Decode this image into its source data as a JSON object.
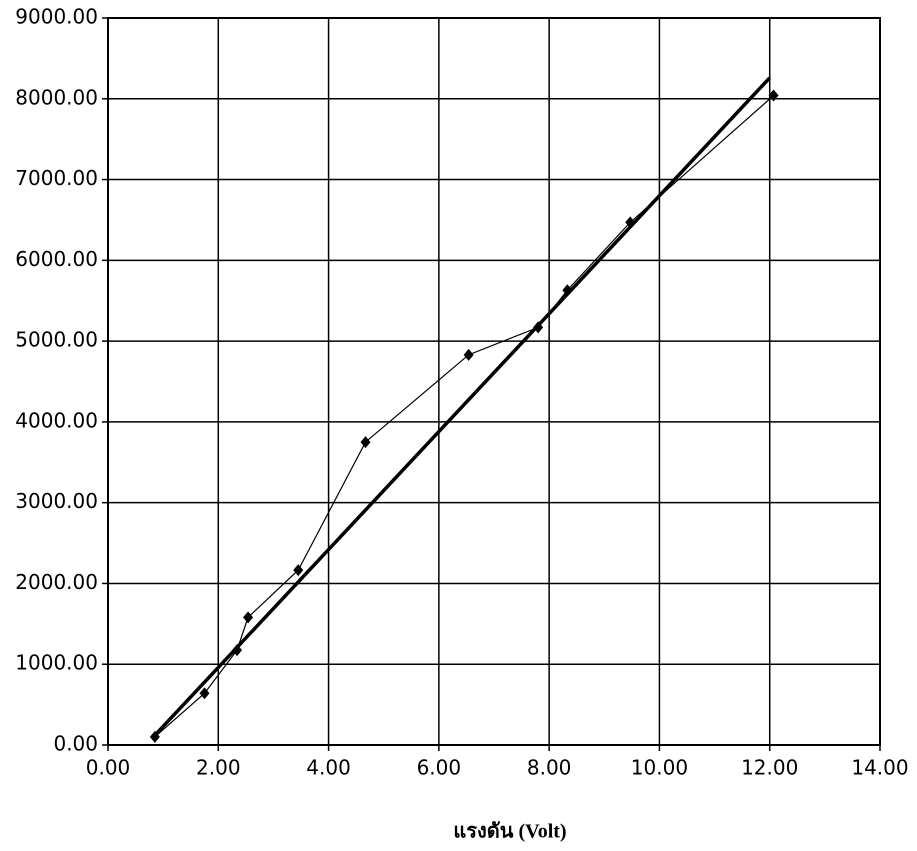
{
  "chart_data": {
    "type": "scatter",
    "x_label": "แรงดัน (Volt)",
    "xlim": [
      0,
      14
    ],
    "xticks": [
      {
        "value": 0,
        "label": "0.00"
      },
      {
        "value": 2,
        "label": "2.00"
      },
      {
        "value": 4,
        "label": "4.00"
      },
      {
        "value": 6,
        "label": "6.00"
      },
      {
        "value": 8,
        "label": "8.00"
      },
      {
        "value": 10,
        "label": "10.00"
      },
      {
        "value": 12,
        "label": "12.00"
      },
      {
        "value": 14,
        "label": "14.00"
      }
    ],
    "ylim": [
      0,
      9000
    ],
    "yticks": [
      {
        "value": 0,
        "label": "0.00"
      },
      {
        "value": 1000,
        "label": "1000.00"
      },
      {
        "value": 2000,
        "label": "2000.00"
      },
      {
        "value": 3000,
        "label": "3000.00"
      },
      {
        "value": 4000,
        "label": "4000.00"
      },
      {
        "value": 5000,
        "label": "5000.00"
      },
      {
        "value": 6000,
        "label": "6000.00"
      },
      {
        "value": 7000,
        "label": "7000.00"
      },
      {
        "value": 8000,
        "label": "8000.00"
      },
      {
        "value": 9000,
        "label": "9000.00"
      }
    ],
    "grid": true,
    "series": [
      {
        "color": "#000000",
        "x": [
          0.85,
          1.75,
          2.34,
          2.54,
          3.45,
          4.67,
          6.54,
          7.8,
          8.33,
          9.47,
          12.07
        ],
        "values": [
          100,
          640,
          1175,
          1580,
          2165,
          3750,
          4830,
          5170,
          5630,
          6470,
          8040
        ]
      }
    ],
    "trendline": {
      "color": "#000000",
      "x": [
        0.8,
        12
      ],
      "values": [
        84,
        8260
      ]
    }
  }
}
